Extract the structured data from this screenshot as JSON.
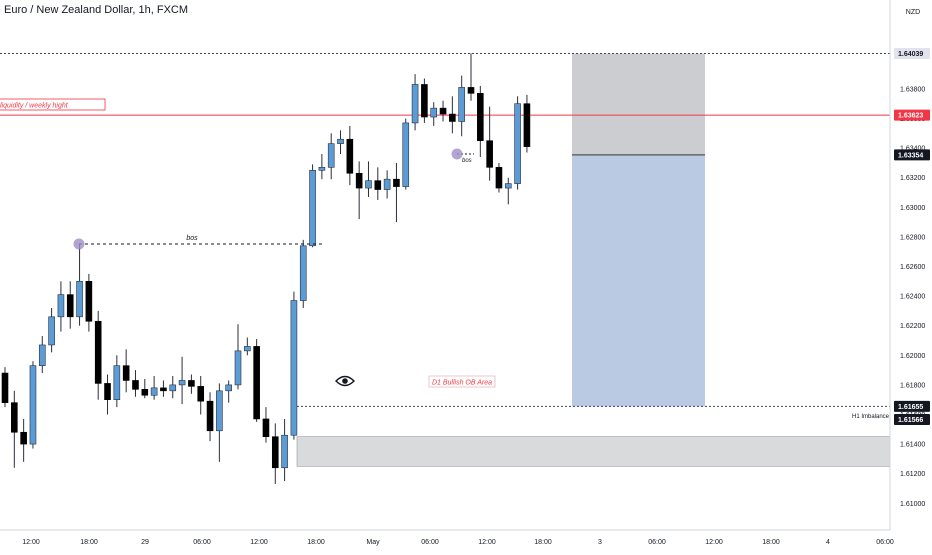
{
  "header": {
    "symbol_title": "Euro / New Zealand Dollar, 1h, FXCM",
    "currency": "NZD"
  },
  "colors": {
    "up_body": "#5b9cd6",
    "down_body": "#000000",
    "wick": "#2a2e39",
    "hline_red": "#f23645",
    "hline_dotted": "#434651",
    "grid_text": "#131722",
    "axis_line": "#d1d4dc",
    "zone_gray": "#c9cacd",
    "zone_blue": "#b7c7e2",
    "zone_stop": "#c7c8cc",
    "pivot_marker": "#9f8fc7",
    "annotation_red": "#f23645",
    "price_tag_dark": "#131722",
    "price_tag_red": "#f23645"
  },
  "chart_data": {
    "type": "candlestick",
    "x_axis": {
      "tick_labels": [
        "12:00",
        "18:00",
        "29",
        "06:00",
        "12:00",
        "18:00",
        "May",
        "06:00",
        "12:00",
        "18:00",
        "3",
        "06:00",
        "12:00",
        "18:00",
        "4",
        "06:00"
      ]
    },
    "y_axis": {
      "tick_labels": [
        "1.63800",
        "1.63600",
        "1.63400",
        "1.63200",
        "1.63000",
        "1.62800",
        "1.62600",
        "1.62400",
        "1.62200",
        "1.62000",
        "1.61800",
        "1.61600",
        "1.61400",
        "1.61200",
        "1.61000"
      ],
      "ylim": [
        1.6083,
        1.6457
      ]
    },
    "candles": [
      {
        "o": 1.6188,
        "h": 1.6192,
        "l": 1.6165,
        "c": 1.6168
      },
      {
        "o": 1.6168,
        "h": 1.6176,
        "l": 1.6124,
        "c": 1.6148
      },
      {
        "o": 1.6148,
        "h": 1.6157,
        "l": 1.6128,
        "c": 1.614
      },
      {
        "o": 1.614,
        "h": 1.6196,
        "l": 1.6137,
        "c": 1.6193
      },
      {
        "o": 1.6193,
        "h": 1.6213,
        "l": 1.6188,
        "c": 1.6207
      },
      {
        "o": 1.6207,
        "h": 1.6232,
        "l": 1.6202,
        "c": 1.6226
      },
      {
        "o": 1.6226,
        "h": 1.625,
        "l": 1.6216,
        "c": 1.6241
      },
      {
        "o": 1.6241,
        "h": 1.625,
        "l": 1.6218,
        "c": 1.6226
      },
      {
        "o": 1.6226,
        "h": 1.6275,
        "l": 1.622,
        "c": 1.625
      },
      {
        "o": 1.625,
        "h": 1.6255,
        "l": 1.6216,
        "c": 1.6223
      },
      {
        "o": 1.6223,
        "h": 1.623,
        "l": 1.617,
        "c": 1.6181
      },
      {
        "o": 1.6181,
        "h": 1.6187,
        "l": 1.616,
        "c": 1.617
      },
      {
        "o": 1.617,
        "h": 1.62,
        "l": 1.6165,
        "c": 1.6193
      },
      {
        "o": 1.6193,
        "h": 1.6204,
        "l": 1.6175,
        "c": 1.6183
      },
      {
        "o": 1.6183,
        "h": 1.619,
        "l": 1.6172,
        "c": 1.6177
      },
      {
        "o": 1.6177,
        "h": 1.6184,
        "l": 1.6171,
        "c": 1.6173
      },
      {
        "o": 1.6173,
        "h": 1.6186,
        "l": 1.617,
        "c": 1.6178
      },
      {
        "o": 1.6178,
        "h": 1.6183,
        "l": 1.6172,
        "c": 1.6176
      },
      {
        "o": 1.6176,
        "h": 1.6186,
        "l": 1.6171,
        "c": 1.618
      },
      {
        "o": 1.618,
        "h": 1.6199,
        "l": 1.6167,
        "c": 1.6183
      },
      {
        "o": 1.6183,
        "h": 1.6187,
        "l": 1.6174,
        "c": 1.6179
      },
      {
        "o": 1.6179,
        "h": 1.6186,
        "l": 1.616,
        "c": 1.6169
      },
      {
        "o": 1.6169,
        "h": 1.6175,
        "l": 1.6142,
        "c": 1.6149
      },
      {
        "o": 1.6149,
        "h": 1.6181,
        "l": 1.6128,
        "c": 1.6176
      },
      {
        "o": 1.6176,
        "h": 1.6183,
        "l": 1.6168,
        "c": 1.618
      },
      {
        "o": 1.618,
        "h": 1.6221,
        "l": 1.6177,
        "c": 1.6203
      },
      {
        "o": 1.6203,
        "h": 1.6212,
        "l": 1.62,
        "c": 1.6206
      },
      {
        "o": 1.6206,
        "h": 1.6211,
        "l": 1.6155,
        "c": 1.6157
      },
      {
        "o": 1.6157,
        "h": 1.6165,
        "l": 1.6141,
        "c": 1.6145
      },
      {
        "o": 1.6145,
        "h": 1.6154,
        "l": 1.6113,
        "c": 1.6124
      },
      {
        "o": 1.6124,
        "h": 1.6157,
        "l": 1.6115,
        "c": 1.6146
      },
      {
        "o": 1.6146,
        "h": 1.6243,
        "l": 1.6143,
        "c": 1.6237
      },
      {
        "o": 1.6237,
        "h": 1.6278,
        "l": 1.6232,
        "c": 1.6274
      },
      {
        "o": 1.6274,
        "h": 1.6329,
        "l": 1.6273,
        "c": 1.6325
      },
      {
        "o": 1.6325,
        "h": 1.6336,
        "l": 1.6319,
        "c": 1.6327
      },
      {
        "o": 1.6327,
        "h": 1.635,
        "l": 1.6319,
        "c": 1.6343
      },
      {
        "o": 1.6343,
        "h": 1.6352,
        "l": 1.6336,
        "c": 1.6346
      },
      {
        "o": 1.6346,
        "h": 1.6355,
        "l": 1.6315,
        "c": 1.6323
      },
      {
        "o": 1.6323,
        "h": 1.6331,
        "l": 1.6292,
        "c": 1.6313
      },
      {
        "o": 1.6313,
        "h": 1.6331,
        "l": 1.6307,
        "c": 1.6318
      },
      {
        "o": 1.6318,
        "h": 1.6327,
        "l": 1.6305,
        "c": 1.6312
      },
      {
        "o": 1.6312,
        "h": 1.6325,
        "l": 1.6306,
        "c": 1.6319
      },
      {
        "o": 1.6319,
        "h": 1.633,
        "l": 1.629,
        "c": 1.6314
      },
      {
        "o": 1.6314,
        "h": 1.636,
        "l": 1.6312,
        "c": 1.6357
      },
      {
        "o": 1.6357,
        "h": 1.639,
        "l": 1.6352,
        "c": 1.6383
      },
      {
        "o": 1.6383,
        "h": 1.6387,
        "l": 1.6357,
        "c": 1.6361
      },
      {
        "o": 1.6361,
        "h": 1.6371,
        "l": 1.6355,
        "c": 1.6367
      },
      {
        "o": 1.6367,
        "h": 1.6372,
        "l": 1.6358,
        "c": 1.6363
      },
      {
        "o": 1.6363,
        "h": 1.6375,
        "l": 1.635,
        "c": 1.6358
      },
      {
        "o": 1.6358,
        "h": 1.6389,
        "l": 1.6348,
        "c": 1.6381
      },
      {
        "o": 1.6381,
        "h": 1.6404,
        "l": 1.6372,
        "c": 1.6377
      },
      {
        "o": 1.6377,
        "h": 1.6382,
        "l": 1.6334,
        "c": 1.6345
      },
      {
        "o": 1.6345,
        "h": 1.6368,
        "l": 1.6318,
        "c": 1.6327
      },
      {
        "o": 1.6327,
        "h": 1.633,
        "l": 1.631,
        "c": 1.6313
      },
      {
        "o": 1.6313,
        "h": 1.632,
        "l": 1.6302,
        "c": 1.6316
      },
      {
        "o": 1.6316,
        "h": 1.6375,
        "l": 1.6312,
        "c": 1.637
      },
      {
        "o": 1.637,
        "h": 1.6376,
        "l": 1.6337,
        "c": 1.6341
      }
    ],
    "horizontal_lines": [
      {
        "price": 1.64039,
        "style": "dotted",
        "color": "#434651"
      },
      {
        "price": 1.63623,
        "style": "solid",
        "color": "#f23645"
      },
      {
        "price": 1.61655,
        "style": "dotted",
        "color": "#434651"
      }
    ],
    "zones": [
      {
        "name": "d1-bullish-ob-zone",
        "price_top": 1.6145,
        "price_bottom": 1.6125,
        "color": "#c9cacd"
      },
      {
        "name": "position-stop-zone",
        "price_top": 1.64039,
        "price_bottom": 1.63354,
        "color": "#c7c8cc"
      },
      {
        "name": "position-target-zone",
        "price_top": 1.63354,
        "price_bottom": 1.61655,
        "color": "#b7c7e2"
      }
    ],
    "price_tags": [
      {
        "value": "1.64039",
        "price": 1.64039,
        "style": "light"
      },
      {
        "value": "1.63623",
        "price": 1.63623,
        "style": "red"
      },
      {
        "value": "1.63354",
        "price": 1.63354,
        "style": "dark"
      },
      {
        "value": "1.61655",
        "price": 1.61655,
        "style": "dark"
      },
      {
        "value": "1.61566",
        "price": 1.61566,
        "style": "dark"
      }
    ],
    "annotations": {
      "liquidity_label": "liquidity / weekly hight",
      "bos_label_1": "bos",
      "bos_label_2": "bos",
      "ob_label": "D1 Bullish OB Area",
      "imbalance_label": "H1 Imbalance"
    }
  }
}
